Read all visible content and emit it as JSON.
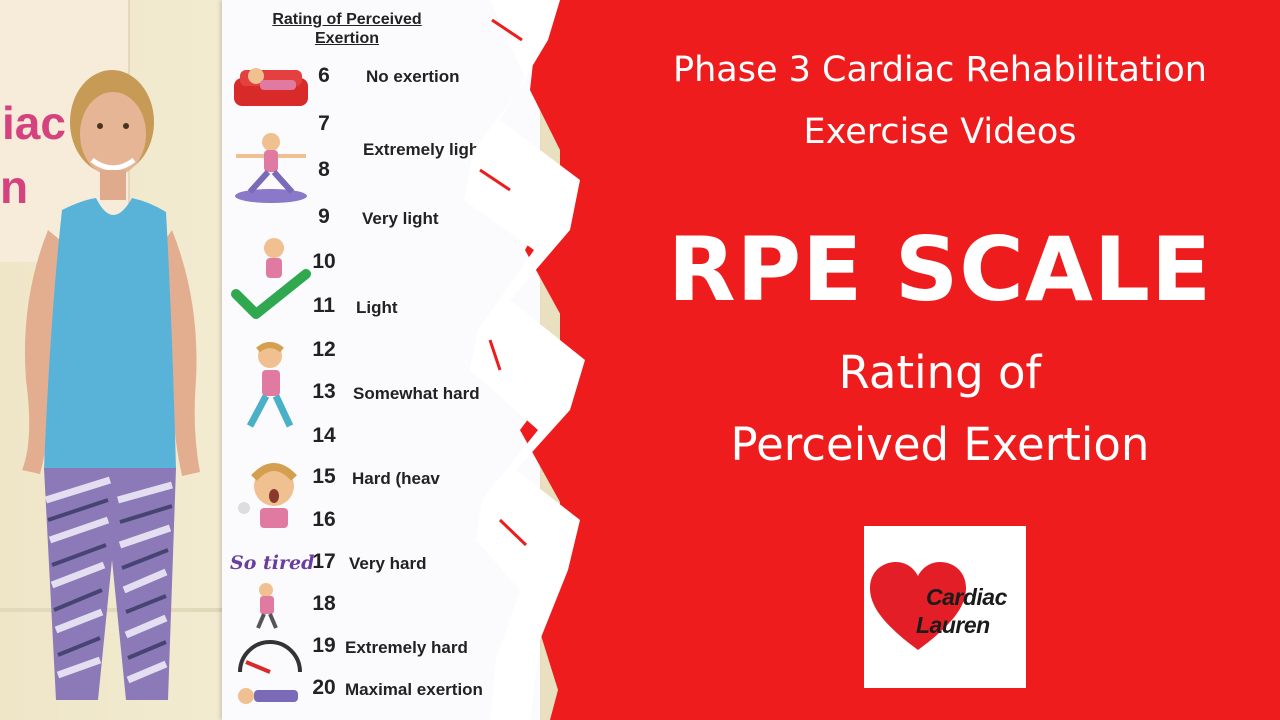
{
  "wall_sign": {
    "line1": "iac",
    "line2": "n"
  },
  "poster": {
    "title_line1": "Rating of Perceived",
    "title_line2": "Exertion",
    "rows": [
      {
        "num": "6",
        "label": "No exertion"
      },
      {
        "num": "7",
        "label": ""
      },
      {
        "num": "8",
        "label": ""
      },
      {
        "num": "",
        "label": "Extremely ligh"
      },
      {
        "num": "9",
        "label": "Very light"
      },
      {
        "num": "10",
        "label": ""
      },
      {
        "num": "11",
        "label": "Light"
      },
      {
        "num": "12",
        "label": ""
      },
      {
        "num": "13",
        "label": "Somewhat hard"
      },
      {
        "num": "14",
        "label": ""
      },
      {
        "num": "15",
        "label": "Hard (heav"
      },
      {
        "num": "16",
        "label": ""
      },
      {
        "num": "17",
        "label": "Very hard"
      },
      {
        "num": "18",
        "label": ""
      },
      {
        "num": "19",
        "label": "Extremely hard"
      },
      {
        "num": "20",
        "label": "Maximal exertion"
      }
    ],
    "so_tired": "So tired"
  },
  "headline": {
    "subtitle_line1": "Phase 3 Cardiac Rehabilitation",
    "subtitle_line2": "Exercise Videos",
    "title": "RPE SCALE",
    "desc_line1": "Rating of",
    "desc_line2": "Perceived Exertion"
  },
  "logo": {
    "line1": "Cardiac",
    "line2": "Lauren"
  },
  "colors": {
    "background": "#ee1c1c",
    "text": "#ffffff",
    "logo_heart": "#e41e26",
    "wall_sign_text": "#d6427f"
  }
}
